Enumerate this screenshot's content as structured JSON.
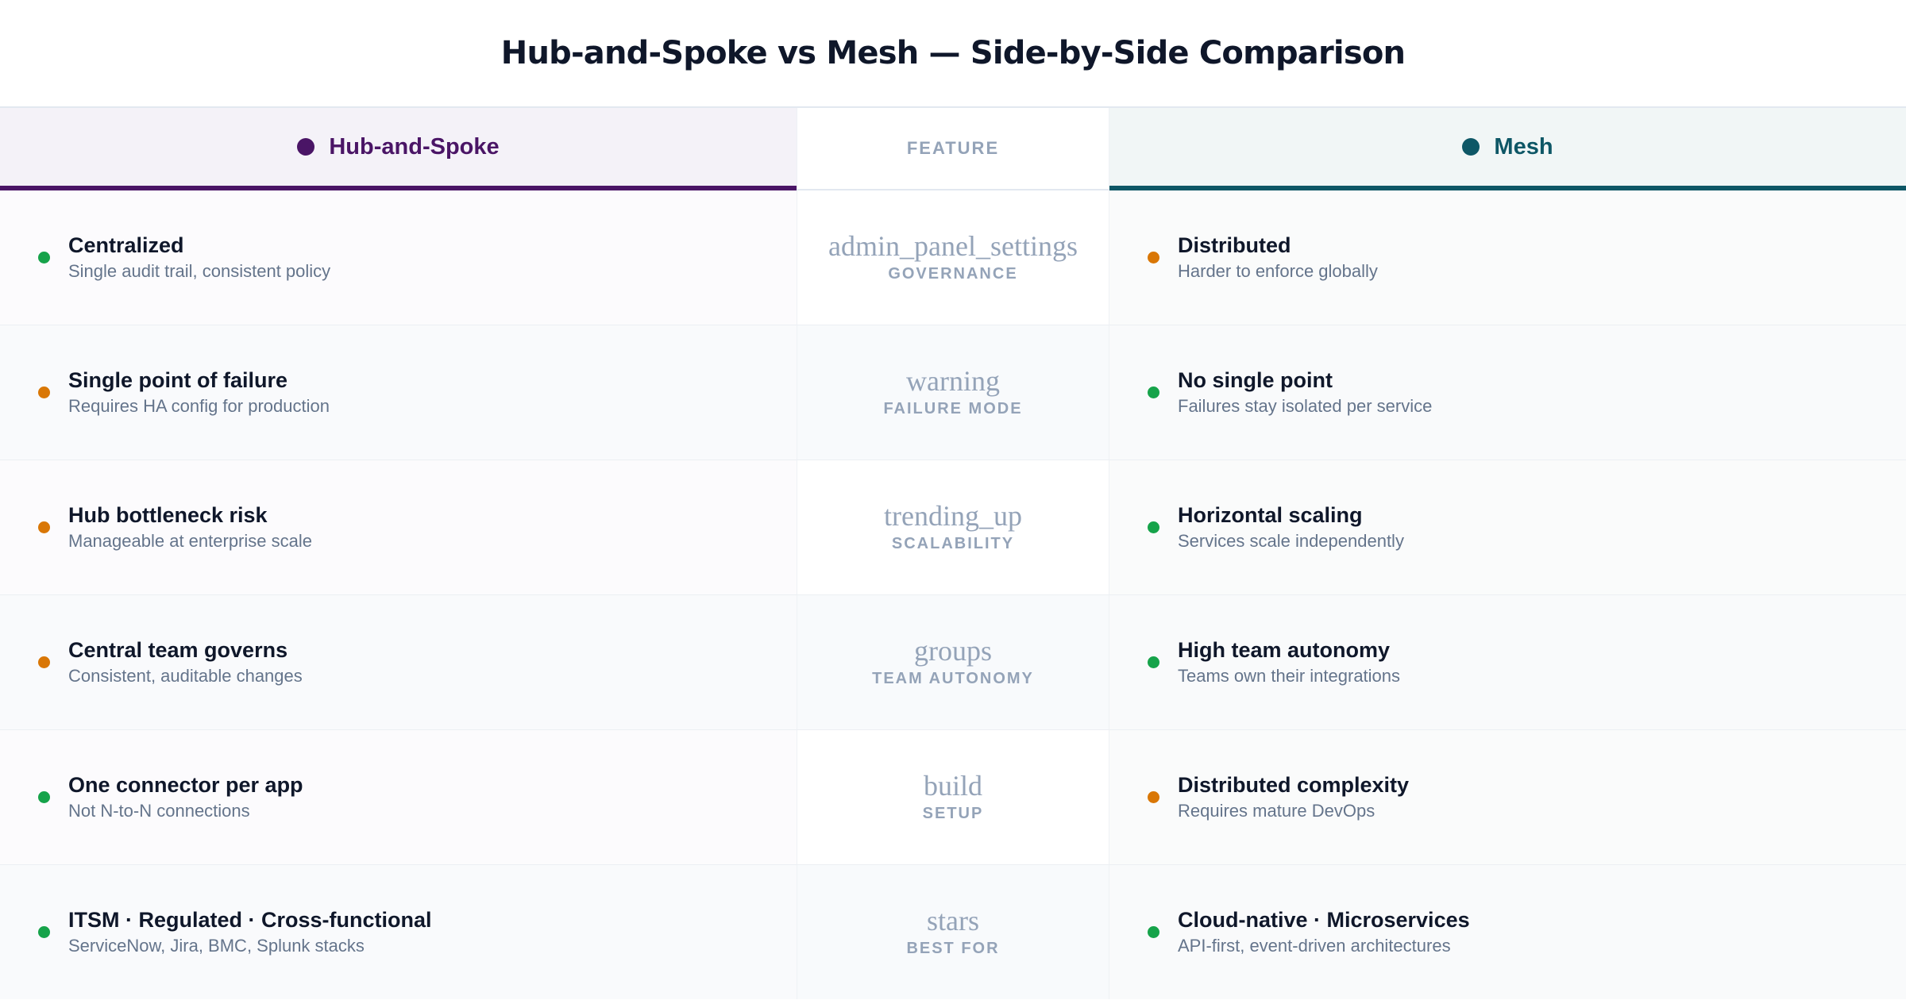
{
  "title": "Hub-and-Spoke vs Mesh — Side-by-Side Comparison",
  "colors": {
    "hub_accent": "#4a1566",
    "mesh_accent": "#0e5766",
    "positive": "#16a34a",
    "warning": "#d97706"
  },
  "header": {
    "hub_label": "Hub-and-Spoke",
    "feature_label": "FEATURE",
    "mesh_label": "Mesh"
  },
  "rows": [
    {
      "feature": {
        "icon": "admin_panel_settings",
        "label": "GOVERNANCE"
      },
      "hub": {
        "status": "positive",
        "title": "Centralized",
        "subtitle": "Single audit trail, consistent policy"
      },
      "mesh": {
        "status": "warning",
        "title": "Distributed",
        "subtitle": "Harder to enforce globally"
      }
    },
    {
      "feature": {
        "icon": "warning",
        "label": "FAILURE MODE"
      },
      "hub": {
        "status": "warning",
        "title": "Single point of failure",
        "subtitle": "Requires HA config for production"
      },
      "mesh": {
        "status": "positive",
        "title": "No single point",
        "subtitle": "Failures stay isolated per service"
      }
    },
    {
      "feature": {
        "icon": "trending_up",
        "label": "SCALABILITY"
      },
      "hub": {
        "status": "warning",
        "title": "Hub bottleneck risk",
        "subtitle": "Manageable at enterprise scale"
      },
      "mesh": {
        "status": "positive",
        "title": "Horizontal scaling",
        "subtitle": "Services scale independently"
      }
    },
    {
      "feature": {
        "icon": "groups",
        "label": "TEAM AUTONOMY"
      },
      "hub": {
        "status": "warning",
        "title": "Central team governs",
        "subtitle": "Consistent, auditable changes"
      },
      "mesh": {
        "status": "positive",
        "title": "High team autonomy",
        "subtitle": "Teams own their integrations"
      }
    },
    {
      "feature": {
        "icon": "build",
        "label": "SETUP"
      },
      "hub": {
        "status": "positive",
        "title": "One connector per app",
        "subtitle": "Not N-to-N connections"
      },
      "mesh": {
        "status": "warning",
        "title": "Distributed complexity",
        "subtitle": "Requires mature DevOps"
      }
    },
    {
      "feature": {
        "icon": "stars",
        "label": "BEST FOR"
      },
      "hub": {
        "status": "positive",
        "title": "ITSM · Regulated · Cross-functional",
        "subtitle": "ServiceNow, Jira, BMC, Splunk stacks"
      },
      "mesh": {
        "status": "positive",
        "title": "Cloud-native · Microservices",
        "subtitle": "API-first, event-driven architectures"
      }
    }
  ]
}
